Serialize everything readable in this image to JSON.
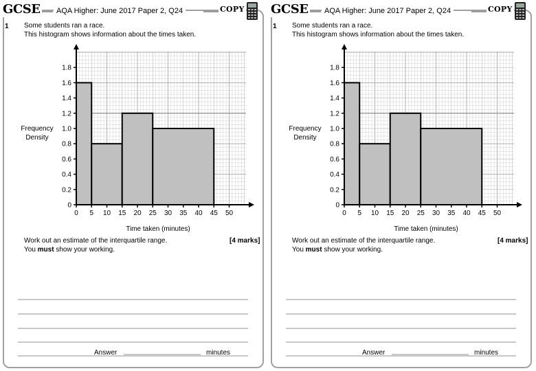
{
  "header": {
    "logo": "GCSE",
    "title": "AQA Higher: June 2017 Paper 2, Q24",
    "copy_label": "COPY",
    "calculator_icon": "calculator-icon"
  },
  "question": {
    "number": "1",
    "line1": "Some students ran a race.",
    "line2": "This histogram shows information about the times taken.",
    "instruction": "Work out an estimate of the interquartile range.",
    "working_prefix": "You ",
    "working_bold": "must",
    "working_suffix": " show your working.",
    "marks": "[4 marks]",
    "answer_label": "Answer",
    "answer_unit": "minutes"
  },
  "colors": {
    "bar_fill": "#c0c0c0",
    "frame": "#a0a0a0",
    "grid_minor": "#cfcfcf",
    "grid_major": "#8c8c8c"
  },
  "chart_data": {
    "type": "bar",
    "title": "",
    "xlabel": "Time taken (minutes)",
    "ylabel": "Frequency Density",
    "ylabel_lines": [
      "Frequency",
      "Density"
    ],
    "xlim": [
      0,
      52
    ],
    "ylim": [
      0,
      2
    ],
    "x_ticks": [
      0,
      5,
      10,
      15,
      20,
      25,
      30,
      35,
      40,
      45,
      50
    ],
    "x_tick_labels": [
      "0",
      "5",
      "10",
      "15",
      "20",
      "25",
      "30",
      "35",
      "40",
      "45",
      "50"
    ],
    "y_ticks": [
      0,
      0.2,
      0.4,
      0.6,
      0.8,
      1.0,
      1.2,
      1.4,
      1.6,
      1.8
    ],
    "y_tick_labels": [
      "0",
      "0.2",
      "0.4",
      "0.6",
      "0.8",
      "1.0",
      "1.2",
      "1.4",
      "1.6",
      "1.8"
    ],
    "grid": true,
    "bars": [
      {
        "x0": 0,
        "x1": 5,
        "value": 1.6
      },
      {
        "x0": 5,
        "x1": 15,
        "value": 0.8
      },
      {
        "x0": 15,
        "x1": 25,
        "value": 1.2
      },
      {
        "x0": 25,
        "x1": 45,
        "value": 1.0
      }
    ]
  }
}
